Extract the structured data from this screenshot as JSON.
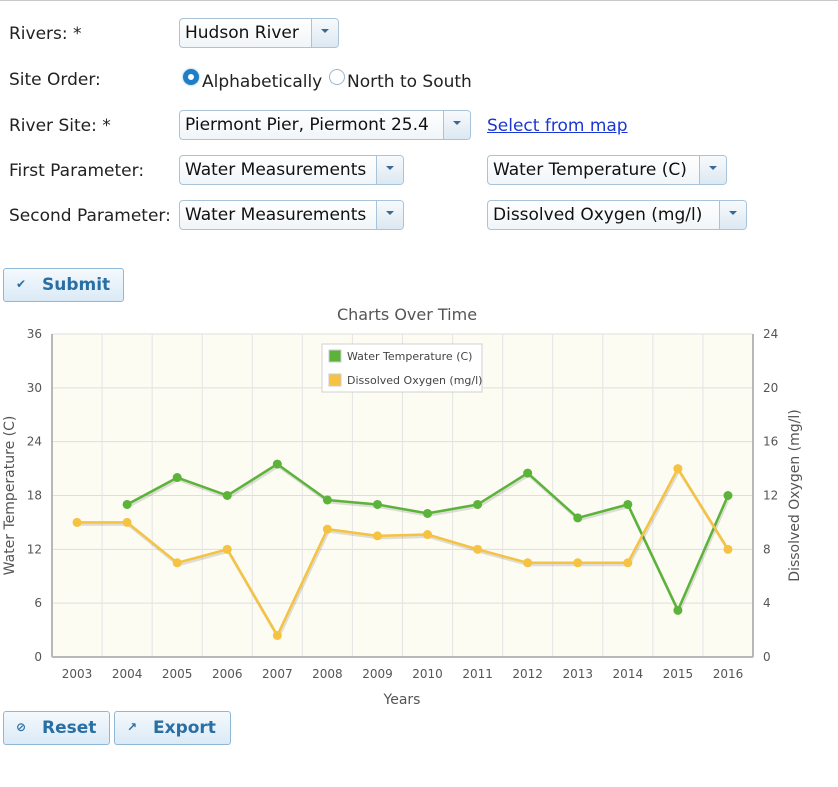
{
  "form": {
    "rivers": {
      "label": "Rivers: *",
      "value": "Hudson River"
    },
    "site_order": {
      "label": "Site Order:",
      "options": [
        {
          "label": "Alphabetically",
          "selected": true
        },
        {
          "label": "North to South",
          "selected": false
        }
      ]
    },
    "river_site": {
      "label": "River Site: *",
      "value": "Piermont Pier, Piermont 25.4",
      "map_link": "Select from map"
    },
    "first_parameter": {
      "label": "First Parameter:",
      "category": "Water Measurements",
      "measure": "Water Temperature (C)"
    },
    "second_parameter": {
      "label": "Second Parameter:",
      "category": "Water Measurements",
      "measure": "Dissolved Oxygen (mg/l)"
    }
  },
  "buttons": {
    "submit": "Submit",
    "reset": "Reset",
    "export": "Export"
  },
  "icons": {
    "submit": "checkmark-icon",
    "reset": "reset-icon",
    "export": "external-link-icon"
  },
  "chart_data": {
    "type": "line",
    "title": "Charts Over Time",
    "xlabel": "Years",
    "ylabel_left": "Water Temperature (C)",
    "ylabel_right": "Dissolved Oxygen (mg/l)",
    "categories": [
      "2003",
      "2004",
      "2005",
      "2006",
      "2007",
      "2008",
      "2009",
      "2010",
      "2011",
      "2012",
      "2013",
      "2014",
      "2015",
      "2016"
    ],
    "y_left": {
      "min": 0,
      "max": 36,
      "ticks": [
        0,
        6,
        12,
        18,
        24,
        30,
        36
      ]
    },
    "y_right": {
      "min": 0,
      "max": 24,
      "ticks": [
        0,
        4,
        8,
        12,
        16,
        20,
        24
      ]
    },
    "grid": true,
    "legend_position": "top-center",
    "series": [
      {
        "name": "Water Temperature (C)",
        "axis": "left",
        "color": "#5bb33a",
        "values": [
          null,
          17,
          20,
          18,
          21.5,
          17.5,
          17,
          16,
          17,
          20.5,
          15.5,
          17,
          5.2,
          18
        ]
      },
      {
        "name": "Dissolved Oxygen (mg/l)",
        "axis": "right",
        "color": "#f5c242",
        "values": [
          10,
          10,
          7,
          8,
          1.6,
          9.5,
          9,
          9.1,
          8,
          7,
          7,
          7,
          14,
          8
        ]
      }
    ]
  }
}
